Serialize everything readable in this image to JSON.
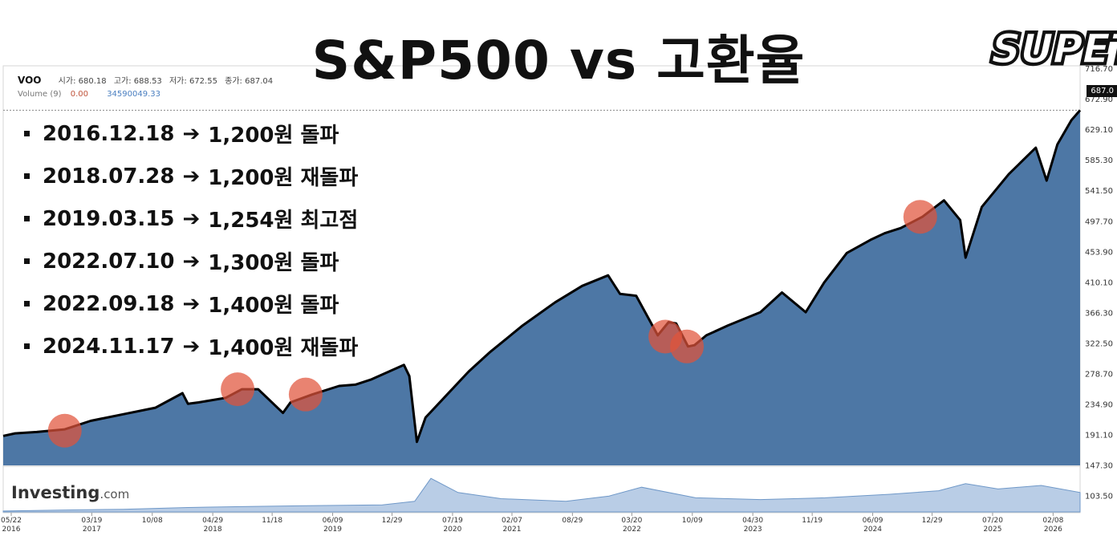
{
  "title": "S&P500 vs 고환율",
  "logo_text": "SUPETV",
  "quote": {
    "symbol": "VOO",
    "open_label": "시가:",
    "open": "680.18",
    "high_label": "고가:",
    "high": "688.53",
    "low_label": "저가:",
    "low": "672.55",
    "close_label": "종가:",
    "close": "687.04"
  },
  "volume": {
    "label": "Volume (9)",
    "v1": "0.00",
    "v2": "34590049.33"
  },
  "current_price": "687.0",
  "branding": {
    "name": "Investing",
    "suffix": ".com"
  },
  "events": [
    {
      "date": "2016.12.18",
      "arrow": "➔",
      "text": "1,200원 돌파"
    },
    {
      "date": "2018.07.28",
      "arrow": "➔",
      "text": "1,200원 재돌파"
    },
    {
      "date": "2019.03.15",
      "arrow": "➔",
      "text": "1,254원 최고점"
    },
    {
      "date": "2022.07.10",
      "arrow": "➔",
      "text": "1,300원 돌파"
    },
    {
      "date": "2022.09.18",
      "arrow": "➔",
      "text": "1,400원 돌파"
    },
    {
      "date": "2024.11.17",
      "arrow": "➔",
      "text": "1,400원 재돌파"
    }
  ],
  "chart_data": {
    "type": "area",
    "ylim": [
      147.3,
      716.7
    ],
    "y_ticks": [
      "716.70",
      "672.90",
      "629.10",
      "585.30",
      "541.50",
      "497.70",
      "453.90",
      "410.10",
      "366.30",
      "322.50",
      "278.70",
      "234.90",
      "191.10",
      "147.30",
      "103.50"
    ],
    "x_ticks": [
      {
        "x": 2016.39,
        "label": "05/22",
        "year": "2016"
      },
      {
        "x": 2017.21,
        "label": "03/19",
        "year": "2017"
      },
      {
        "x": 2017.77,
        "label": "10/08",
        "year": ""
      },
      {
        "x": 2018.33,
        "label": "04/29",
        "year": "2018"
      },
      {
        "x": 2018.88,
        "label": "11/18",
        "year": ""
      },
      {
        "x": 2019.44,
        "label": "06/09",
        "year": "2019"
      },
      {
        "x": 2019.99,
        "label": "12/29",
        "year": ""
      },
      {
        "x": 2020.55,
        "label": "07/19",
        "year": "2020"
      },
      {
        "x": 2021.1,
        "label": "02/07",
        "year": "2021"
      },
      {
        "x": 2021.66,
        "label": "08/29",
        "year": ""
      },
      {
        "x": 2022.21,
        "label": "03/20",
        "year": "2022"
      },
      {
        "x": 2022.77,
        "label": "10/09",
        "year": ""
      },
      {
        "x": 2023.33,
        "label": "04/30",
        "year": "2023"
      },
      {
        "x": 2023.88,
        "label": "11/19",
        "year": ""
      },
      {
        "x": 2024.44,
        "label": "06/09",
        "year": "2024"
      },
      {
        "x": 2024.99,
        "label": "12/29",
        "year": ""
      },
      {
        "x": 2025.55,
        "label": "07/20",
        "year": "2025"
      },
      {
        "x": 2026.11,
        "label": "02/08",
        "year": "2026"
      }
    ],
    "series": [
      {
        "x": [
          2016.39,
          2016.5,
          2016.7,
          2016.96,
          2017.2,
          2017.5,
          2017.8,
          2018.05,
          2018.1,
          2018.2,
          2018.45,
          2018.6,
          2018.75,
          2018.98,
          2019.05,
          2019.25,
          2019.5,
          2019.65,
          2019.8,
          2020.1,
          2020.15,
          2020.22,
          2020.3,
          2020.5,
          2020.7,
          2020.9,
          2021.2,
          2021.5,
          2021.75,
          2021.99,
          2022.1,
          2022.25,
          2022.45,
          2022.55,
          2022.62,
          2022.73,
          2022.79,
          2022.9,
          2023.1,
          2023.4,
          2023.6,
          2023.82,
          2023.99,
          2024.2,
          2024.42,
          2024.55,
          2024.7,
          2024.9,
          2025.1,
          2025.25,
          2025.3,
          2025.45,
          2025.7,
          2025.95,
          2026.05,
          2026.15,
          2026.28,
          2026.36
        ],
        "y": [
          192,
          196,
          198,
          202,
          215,
          225,
          235,
          257,
          241,
          243,
          250,
          263,
          263,
          227,
          243,
          255,
          268,
          270,
          278,
          300,
          283,
          183,
          220,
          255,
          290,
          320,
          360,
          395,
          420,
          436,
          408,
          405,
          345,
          365,
          363,
          328,
          330,
          345,
          360,
          380,
          410,
          380,
          425,
          470,
          490,
          500,
          508,
          525,
          550,
          520,
          463,
          540,
          590,
          630,
          580,
          635,
          672,
          687
        ]
      }
    ],
    "volume": {
      "x": [
        2016.39,
        2016.9,
        2017.5,
        2018.1,
        2018.6,
        2019.2,
        2019.9,
        2020.2,
        2020.35,
        2020.6,
        2021.0,
        2021.6,
        2022.0,
        2022.3,
        2022.8,
        2023.4,
        2024.0,
        2024.6,
        2025.05,
        2025.3,
        2025.6,
        2026.0,
        2026.36
      ],
      "y": [
        1,
        2,
        3,
        5,
        6,
        7,
        8,
        12,
        38,
        22,
        15,
        12,
        18,
        28,
        16,
        14,
        16,
        20,
        24,
        32,
        26,
        30,
        22
      ]
    },
    "highlights": [
      {
        "x": 2016.96,
        "y": 200
      },
      {
        "x": 2018.56,
        "y": 263
      },
      {
        "x": 2019.19,
        "y": 255
      },
      {
        "x": 2022.52,
        "y": 343
      },
      {
        "x": 2022.72,
        "y": 328
      },
      {
        "x": 2024.88,
        "y": 525
      }
    ],
    "grid": false,
    "line_color": "#000000",
    "fill_color": "#4d77a5",
    "highlight_color": "#e0533a",
    "volume_color": "#6f98c8"
  }
}
